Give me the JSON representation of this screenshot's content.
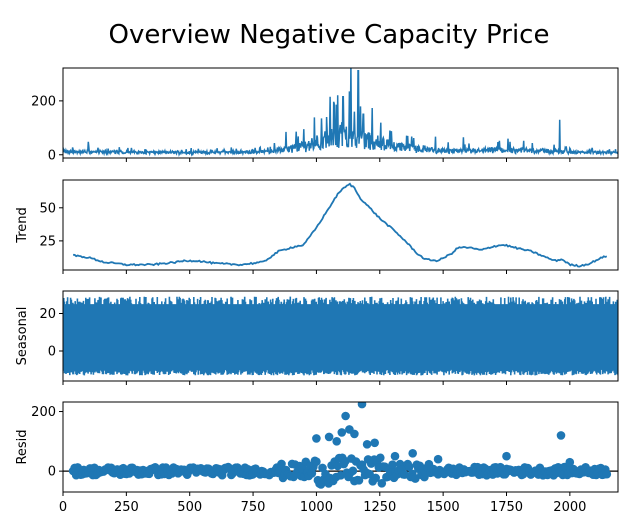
{
  "chart_data": {
    "type": "line",
    "title": "Overview Negative Capacity Price",
    "color": "#1f77b4",
    "x_ticks": [
      0,
      250,
      500,
      750,
      1000,
      1250,
      1500,
      1750,
      2000
    ],
    "xlim": [
      0,
      2190
    ],
    "panels": [
      {
        "name": "observed",
        "ylabel": "",
        "kind": "line",
        "ylim": [
          -12,
          322
        ],
        "y_ticks": [
          0,
          200
        ],
        "trend": [
          [
            0,
            8
          ],
          [
            200,
            7
          ],
          [
            400,
            6
          ],
          [
            600,
            6
          ],
          [
            800,
            8
          ],
          [
            900,
            20
          ],
          [
            1000,
            40
          ],
          [
            1050,
            55
          ],
          [
            1100,
            70
          ],
          [
            1150,
            75
          ],
          [
            1200,
            50
          ],
          [
            1300,
            30
          ],
          [
            1400,
            20
          ],
          [
            1500,
            12
          ],
          [
            1600,
            10
          ],
          [
            1700,
            14
          ],
          [
            1800,
            14
          ],
          [
            1900,
            11
          ],
          [
            1950,
            9
          ],
          [
            2000,
            6
          ],
          [
            2100,
            6
          ],
          [
            2190,
            5
          ]
        ],
        "spikes": [
          [
            100,
            48
          ],
          [
            880,
            85
          ],
          [
            950,
            95
          ],
          [
            1040,
            140
          ],
          [
            1070,
            190
          ],
          [
            1105,
            215
          ],
          [
            1130,
            235
          ],
          [
            1150,
            160
          ],
          [
            1165,
            312
          ],
          [
            1185,
            150
          ],
          [
            1290,
            90
          ],
          [
            1360,
            70
          ],
          [
            1580,
            65
          ],
          [
            1960,
            130
          ]
        ]
      },
      {
        "name": "trend",
        "ylabel": "Trend",
        "kind": "line",
        "ylim": [
          3,
          71
        ],
        "y_ticks": [
          25,
          50
        ],
        "points": [
          [
            40,
            14
          ],
          [
            80,
            13
          ],
          [
            110,
            12
          ],
          [
            160,
            9
          ],
          [
            250,
            7
          ],
          [
            350,
            7
          ],
          [
            450,
            9
          ],
          [
            480,
            10
          ],
          [
            530,
            10
          ],
          [
            600,
            8
          ],
          [
            700,
            7
          ],
          [
            790,
            9
          ],
          [
            850,
            17
          ],
          [
            900,
            20
          ],
          [
            950,
            22
          ],
          [
            1000,
            35
          ],
          [
            1050,
            50
          ],
          [
            1090,
            62
          ],
          [
            1110,
            65
          ],
          [
            1130,
            68
          ],
          [
            1150,
            65
          ],
          [
            1170,
            58
          ],
          [
            1200,
            52
          ],
          [
            1250,
            42
          ],
          [
            1300,
            34
          ],
          [
            1350,
            25
          ],
          [
            1400,
            15
          ],
          [
            1430,
            11
          ],
          [
            1480,
            10
          ],
          [
            1530,
            15
          ],
          [
            1560,
            20
          ],
          [
            1600,
            20
          ],
          [
            1650,
            18
          ],
          [
            1700,
            21
          ],
          [
            1740,
            22
          ],
          [
            1780,
            20
          ],
          [
            1850,
            17
          ],
          [
            1900,
            13
          ],
          [
            1940,
            10
          ],
          [
            1970,
            11
          ],
          [
            2000,
            7
          ],
          [
            2040,
            6
          ],
          [
            2080,
            8
          ],
          [
            2110,
            11
          ],
          [
            2150,
            14
          ]
        ]
      },
      {
        "name": "seasonal",
        "ylabel": "Seasonal",
        "kind": "band",
        "ylim": [
          -16,
          32
        ],
        "y_ticks": [
          0,
          20
        ],
        "band_range": [
          -13,
          29
        ],
        "fill_range": [
          -10,
          25
        ]
      },
      {
        "name": "resid",
        "ylabel": "Resid",
        "kind": "scatter",
        "ylim": [
          -70,
          232
        ],
        "y_ticks": [
          0,
          200
        ],
        "zero_line": true,
        "outliers": [
          [
            1000,
            110
          ],
          [
            1050,
            115
          ],
          [
            1080,
            100
          ],
          [
            1100,
            130
          ],
          [
            1115,
            185
          ],
          [
            1130,
            140
          ],
          [
            1150,
            125
          ],
          [
            1180,
            225
          ],
          [
            1200,
            90
          ],
          [
            1230,
            95
          ],
          [
            1310,
            50
          ],
          [
            1380,
            60
          ],
          [
            1480,
            40
          ],
          [
            1750,
            50
          ],
          [
            1965,
            120
          ],
          [
            2000,
            30
          ]
        ]
      }
    ]
  }
}
